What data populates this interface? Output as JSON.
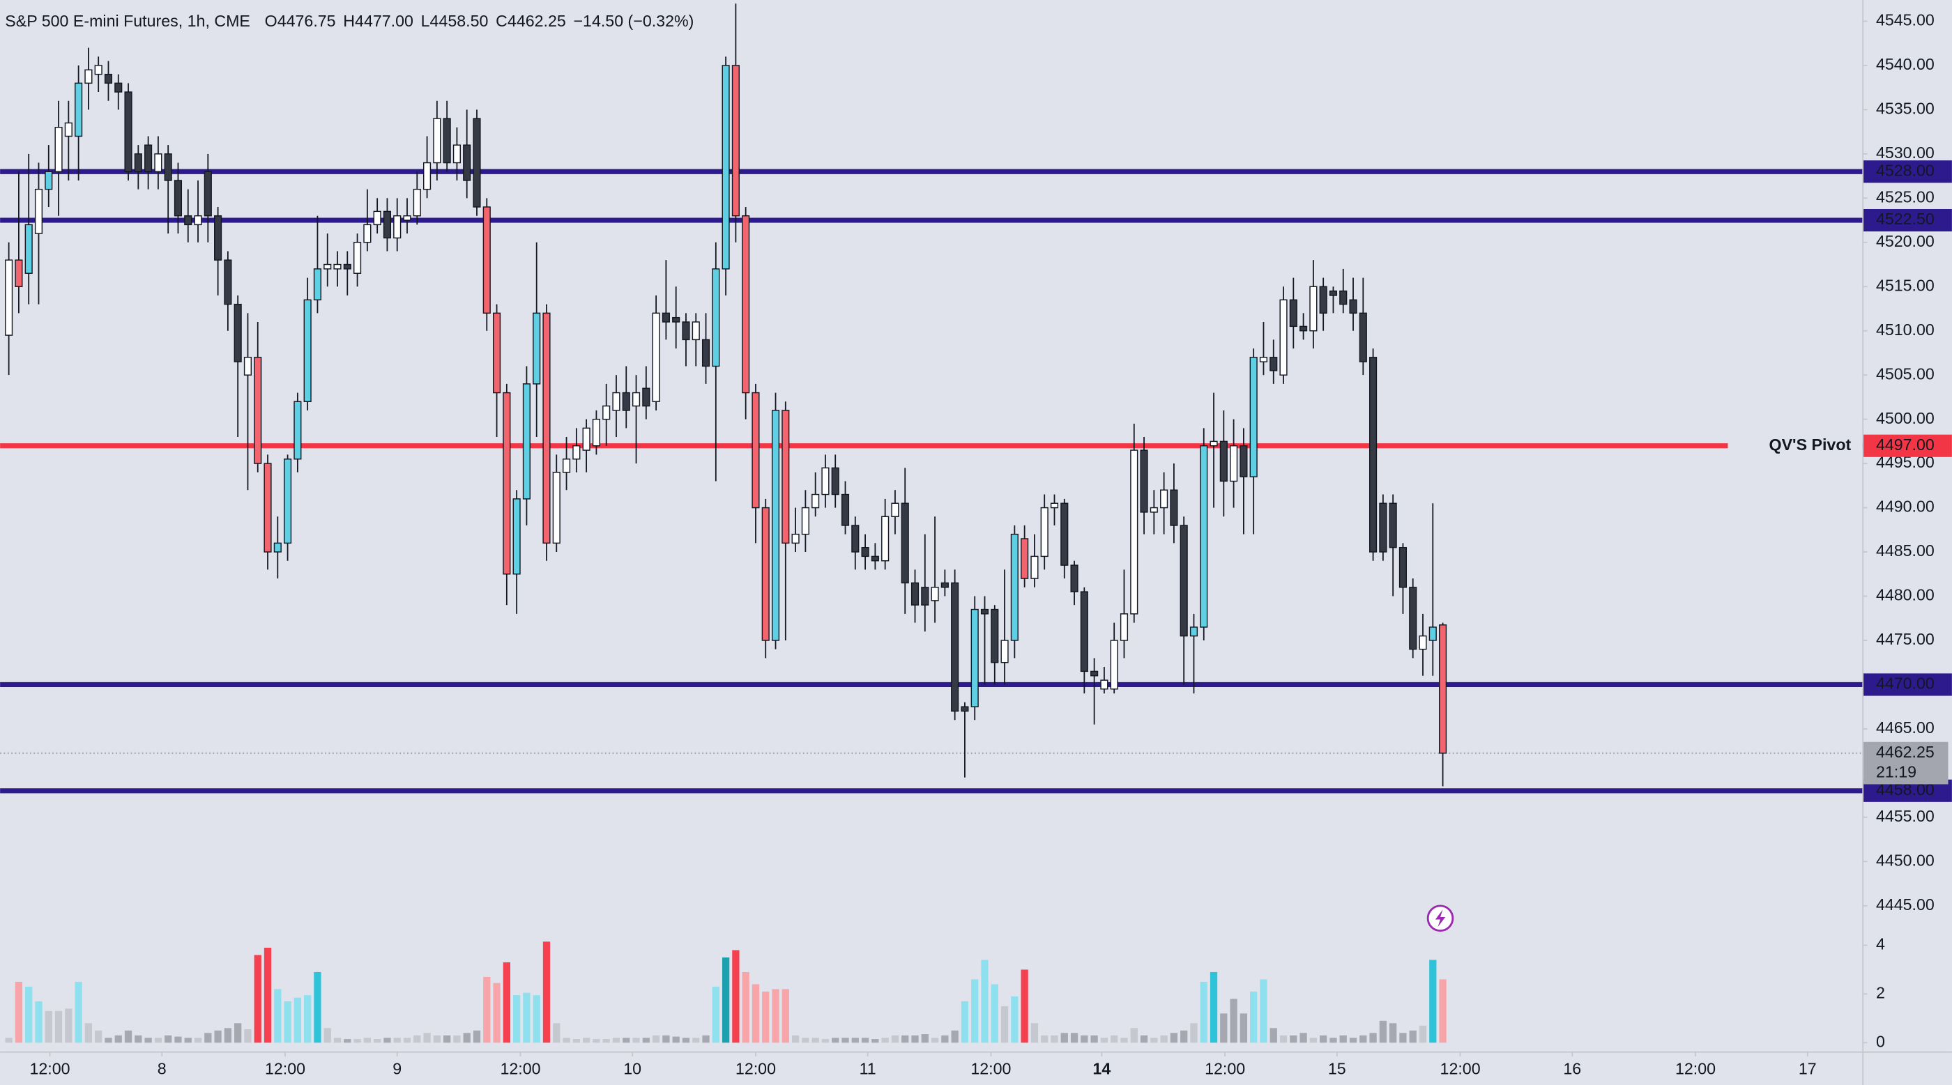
{
  "chart_data": {
    "type": "candlestick",
    "title": "S&P 500 E-mini Futures, 1h, CME",
    "header": [
      {
        "key": "O",
        "text": "4476.75"
      },
      {
        "key": "H",
        "text": "4477.00"
      },
      {
        "key": "L",
        "text": "4458.50"
      },
      {
        "key": "C",
        "text": "4462.25"
      }
    ],
    "change": "−14.50 (−0.32%)",
    "open": [
      4509.5,
      4518,
      4516.5,
      4521,
      4526,
      4528,
      4532,
      4532,
      4538,
      4539,
      4539,
      4538,
      4537,
      4530,
      4531,
      4528,
      4530,
      4527,
      4523,
      4522,
      4528,
      4523,
      4518,
      4513,
      4505,
      4507,
      4495,
      4485,
      4486,
      4495.5,
      4502,
      4513.5,
      4517,
      4517,
      4517.5,
      4516.5,
      4520,
      4522,
      4523.5,
      4520.5,
      4522.5,
      4523,
      4526,
      4529,
      4534,
      4529,
      4531,
      4534,
      4524,
      4512,
      4503,
      4482.5,
      4491,
      4504,
      4512,
      4486,
      4494,
      4495.5,
      4496.5,
      4497,
      4500,
      4501,
      4503,
      4501.5,
      4503.5,
      4502,
      4512,
      4511.5,
      4511,
      4509,
      4509,
      4506,
      4517,
      4540,
      4523,
      4503,
      4490,
      4475,
      4501,
      4486,
      4487,
      4490,
      4491.5,
      4494.5,
      4491.5,
      4488,
      4485.5,
      4484.5,
      4484,
      4489,
      4490.5,
      4481.5,
      4481,
      4479.5,
      4481.5,
      4481.5,
      4467.5,
      4467.5,
      4478.5,
      4478.5,
      4472.5,
      4475,
      4486.5,
      4482,
      4484.5,
      4490,
      4490.5,
      4483.5,
      4480.5,
      4471.5,
      4469.5,
      4469.5,
      4475,
      4478,
      4496.5,
      4489.5,
      4490,
      4492,
      4488,
      4475.5,
      4476.5,
      4497,
      4497.5,
      4493,
      4497,
      4493.5,
      4506.5,
      4507,
      4505,
      4513.5,
      4510.5,
      4510,
      4515,
      4514.5,
      4514.5,
      4513.5,
      4512,
      4507,
      4490.5,
      4490.5,
      4485.5,
      4481,
      4474,
      4475,
      4476.75
    ],
    "high": [
      4520,
      4528,
      4530,
      4529,
      4531,
      4536,
      4536,
      4540,
      4542,
      4541,
      4540.5,
      4539,
      4538,
      4531,
      4532,
      4532,
      4531,
      4529,
      4526,
      4527,
      4530,
      4524,
      4519,
      4514,
      4512,
      4511,
      4496,
      4489,
      4496,
      4503,
      4516,
      4523,
      4521,
      4519,
      4519,
      4521,
      4526,
      4525,
      4525,
      4525,
      4525,
      4528,
      4532,
      4536,
      4536,
      4533,
      4535,
      4535,
      4525,
      4513,
      4504,
      4492,
      4506,
      4520,
      4513,
      4496,
      4498,
      4499,
      4500,
      4501,
      4504,
      4505,
      4506,
      4505,
      4506,
      4514,
      4518,
      4515,
      4512,
      4512,
      4512,
      4520,
      4541,
      4547,
      4524,
      4504,
      4491,
      4503,
      4502,
      4490,
      4492,
      4494,
      4496,
      4496,
      4493,
      4489,
      4487,
      4486,
      4491,
      4492,
      4494.5,
      4483,
      4487,
      4489,
      4483,
      4483,
      4468,
      4480,
      4480,
      4479,
      4483,
      4488,
      4488,
      4487,
      4491.5,
      4491.5,
      4491,
      4484,
      4481,
      4473,
      4472,
      4477,
      4483,
      4499.5,
      4498,
      4492,
      4494,
      4495,
      4489,
      4478,
      4499,
      4503,
      4501,
      4500,
      4499,
      4508,
      4511,
      4509,
      4515,
      4516,
      4512,
      4518,
      4516,
      4515,
      4517,
      4516,
      4516,
      4508,
      4491.5,
      4491.5,
      4486,
      4482,
      4478,
      4490.5,
      4477
    ],
    "low": [
      4505,
      4512,
      4513,
      4513,
      4524,
      4523,
      4527,
      4527,
      4535,
      4537,
      4536,
      4535,
      4527,
      4526,
      4526,
      4526,
      4521,
      4521,
      4520,
      4520,
      4520,
      4514,
      4510,
      4498,
      4492,
      4494,
      4483,
      4482,
      4484,
      4494,
      4501,
      4512,
      4515,
      4515,
      4514,
      4515,
      4519,
      4521,
      4519,
      4519,
      4521,
      4522,
      4525,
      4527,
      4528,
      4527,
      4525,
      4523,
      4510,
      4498,
      4479,
      4478,
      4488,
      4498,
      4484,
      4485,
      4492,
      4494,
      4494,
      4496,
      4497,
      4498,
      4499,
      4495,
      4500,
      4501,
      4509,
      4508,
      4506,
      4506,
      4504,
      4493,
      4514,
      4520,
      4500,
      4486,
      4473,
      4474,
      4475,
      4485,
      4485,
      4489,
      4490,
      4490,
      4487,
      4483,
      4483,
      4483,
      4483,
      4487,
      4478,
      4477,
      4476,
      4477,
      4480,
      4466,
      4459.5,
      4466,
      4470,
      4470,
      4470,
      4473,
      4481,
      4481,
      4483,
      4488,
      4482,
      4479,
      4469,
      4465.5,
      4469,
      4469,
      4473,
      4477,
      4487,
      4487,
      4487,
      4486,
      4470,
      4469,
      4475,
      4490,
      4489,
      4490,
      4487,
      4487,
      4505,
      4504,
      4504,
      4508,
      4509,
      4508,
      4510,
      4512,
      4512,
      4510,
      4505,
      4484,
      4484,
      4480,
      4478,
      4473,
      4471,
      4471,
      4458.5
    ],
    "close": [
      4518,
      4515,
      4522,
      4526,
      4528,
      4533,
      4533.5,
      4538,
      4539.5,
      4540,
      4538,
      4537,
      4528,
      4528,
      4528,
      4530,
      4527,
      4523,
      4522,
      4523,
      4523,
      4518,
      4513,
      4506.5,
      4507,
      4495,
      4485,
      4486,
      4495.5,
      4502,
      4513.5,
      4517,
      4517.5,
      4517.5,
      4517,
      4520,
      4522,
      4523.5,
      4520.5,
      4523,
      4523,
      4526,
      4529,
      4534,
      4529,
      4531,
      4527,
      4524,
      4512,
      4503,
      4482.5,
      4491,
      4504,
      4512,
      4486,
      4494,
      4495.5,
      4497,
      4499,
      4500,
      4501.5,
      4503,
      4501,
      4503,
      4501.5,
      4512,
      4511,
      4511,
      4509,
      4511,
      4506,
      4517,
      4540,
      4523,
      4503,
      4490,
      4475,
      4501,
      4486,
      4487,
      4490,
      4491.5,
      4494.5,
      4491.5,
      4488,
      4485,
      4484.5,
      4484,
      4489,
      4490.5,
      4481.5,
      4479,
      4479,
      4481,
      4481,
      4467,
      4467,
      4478.5,
      4478,
      4472.5,
      4475,
      4487,
      4482,
      4484.5,
      4490,
      4490.5,
      4483.5,
      4480.5,
      4471.5,
      4471,
      4470.5,
      4475,
      4478,
      4496.5,
      4489.5,
      4490,
      4492,
      4488,
      4475.5,
      4476.5,
      4497,
      4497.5,
      4493,
      4497,
      4493.5,
      4507,
      4507,
      4505.5,
      4513.5,
      4510.5,
      4510,
      4515,
      4512,
      4514,
      4513,
      4512,
      4506.5,
      4485,
      4485,
      4485.5,
      4481,
      4474,
      4475.5,
      4476.5,
      4462.25
    ],
    "colors": [
      "#ffffff",
      "#f2656e",
      "#5fd0e4",
      "#ffffff",
      "#5fd0e4",
      "#ffffff",
      "#ffffff",
      "#5fd0e4",
      "#ffffff",
      "#ffffff",
      "#363a45",
      "#363a45",
      "#363a45",
      "#363a45",
      "#363a45",
      "#ffffff",
      "#363a45",
      "#363a45",
      "#363a45",
      "#ffffff",
      "#363a45",
      "#363a45",
      "#363a45",
      "#363a45",
      "#ffffff",
      "#f2656e",
      "#f2656e",
      "#5fd0e4",
      "#5fd0e4",
      "#5fd0e4",
      "#5fd0e4",
      "#5fd0e4",
      "#ffffff",
      "#ffffff",
      "#363a45",
      "#ffffff",
      "#ffffff",
      "#ffffff",
      "#363a45",
      "#ffffff",
      "#ffffff",
      "#ffffff",
      "#ffffff",
      "#ffffff",
      "#363a45",
      "#ffffff",
      "#363a45",
      "#363a45",
      "#f2656e",
      "#f2656e",
      "#f2656e",
      "#5fd0e4",
      "#5fd0e4",
      "#5fd0e4",
      "#f2656e",
      "#ffffff",
      "#ffffff",
      "#ffffff",
      "#ffffff",
      "#ffffff",
      "#ffffff",
      "#ffffff",
      "#363a45",
      "#ffffff",
      "#363a45",
      "#ffffff",
      "#363a45",
      "#363a45",
      "#363a45",
      "#ffffff",
      "#363a45",
      "#5fd0e4",
      "#5fd0e4",
      "#f2656e",
      "#f2656e",
      "#f2656e",
      "#f2656e",
      "#5fd0e4",
      "#f2656e",
      "#ffffff",
      "#ffffff",
      "#ffffff",
      "#ffffff",
      "#363a45",
      "#363a45",
      "#363a45",
      "#363a45",
      "#363a45",
      "#ffffff",
      "#ffffff",
      "#363a45",
      "#363a45",
      "#363a45",
      "#ffffff",
      "#363a45",
      "#363a45",
      "#363a45",
      "#5fd0e4",
      "#363a45",
      "#363a45",
      "#ffffff",
      "#5fd0e4",
      "#f2656e",
      "#ffffff",
      "#ffffff",
      "#ffffff",
      "#363a45",
      "#363a45",
      "#363a45",
      "#363a45",
      "#ffffff",
      "#ffffff",
      "#ffffff",
      "#ffffff",
      "#363a45",
      "#ffffff",
      "#ffffff",
      "#363a45",
      "#363a45",
      "#5fd0e4",
      "#5fd0e4",
      "#ffffff",
      "#363a45",
      "#ffffff",
      "#363a45",
      "#5fd0e4",
      "#ffffff",
      "#363a45",
      "#ffffff",
      "#363a45",
      "#363a45",
      "#ffffff",
      "#363a45",
      "#363a45",
      "#363a45",
      "#363a45",
      "#363a45",
      "#363a45",
      "#363a45",
      "#363a45",
      "#363a45",
      "#363a45",
      "#ffffff",
      "#5fd0e4",
      "#f2656e"
    ],
    "volume": {
      "values": [
        0.2,
        2.5,
        2.3,
        1.7,
        1.3,
        1.3,
        1.4,
        2.5,
        0.8,
        0.5,
        0.2,
        0.3,
        0.5,
        0.3,
        0.2,
        0.2,
        0.3,
        0.25,
        0.2,
        0.2,
        0.4,
        0.5,
        0.6,
        0.8,
        0.55,
        3.6,
        3.9,
        2.2,
        1.7,
        1.85,
        1.95,
        2.9,
        0.6,
        0.2,
        0.15,
        0.15,
        0.2,
        0.15,
        0.2,
        0.2,
        0.2,
        0.3,
        0.4,
        0.3,
        0.3,
        0.3,
        0.4,
        0.5,
        2.7,
        2.45,
        3.3,
        1.95,
        2.05,
        1.95,
        4.15,
        0.8,
        0.2,
        0.15,
        0.2,
        0.15,
        0.15,
        0.2,
        0.2,
        0.2,
        0.2,
        0.3,
        0.3,
        0.25,
        0.2,
        0.2,
        0.3,
        2.3,
        3.5,
        3.8,
        2.9,
        2.4,
        2.1,
        2.2,
        2.2,
        0.3,
        0.2,
        0.2,
        0.15,
        0.2,
        0.2,
        0.2,
        0.2,
        0.15,
        0.2,
        0.3,
        0.3,
        0.3,
        0.35,
        0.2,
        0.3,
        0.5,
        1.7,
        2.6,
        3.4,
        2.4,
        1.5,
        1.9,
        3.0,
        0.8,
        0.3,
        0.3,
        0.4,
        0.4,
        0.3,
        0.3,
        0.2,
        0.3,
        0.2,
        0.6,
        0.3,
        0.2,
        0.3,
        0.4,
        0.5,
        0.8,
        2.5,
        2.9,
        1.2,
        1.8,
        1.2,
        2.1,
        2.6,
        0.6,
        0.3,
        0.3,
        0.4,
        0.2,
        0.3,
        0.2,
        0.3,
        0.2,
        0.3,
        0.4,
        0.9,
        0.8,
        0.4,
        0.5,
        0.7,
        3.4,
        2.6
      ],
      "colors": [
        "#c5c8cf",
        "#f8a5a9",
        "#8ee0ee",
        "#8ee0ee",
        "#c5c8cf",
        "#c5c8cf",
        "#c5c8cf",
        "#8ee0ee",
        "#c5c8cf",
        "#c5c8cf",
        "#a5a8b0",
        "#a5a8b0",
        "#a5a8b0",
        "#a5a8b0",
        "#a5a8b0",
        "#c5c8cf",
        "#a5a8b0",
        "#a5a8b0",
        "#a5a8b0",
        "#c5c8cf",
        "#a5a8b0",
        "#a5a8b0",
        "#a5a8b0",
        "#a5a8b0",
        "#c5c8cf",
        "#f4404f",
        "#f4404f",
        "#8ee0ee",
        "#8ee0ee",
        "#8ee0ee",
        "#8ee0ee",
        "#2fc3da",
        "#c5c8cf",
        "#c5c8cf",
        "#a5a8b0",
        "#c5c8cf",
        "#c5c8cf",
        "#c5c8cf",
        "#a5a8b0",
        "#c5c8cf",
        "#c5c8cf",
        "#c5c8cf",
        "#c5c8cf",
        "#c5c8cf",
        "#a5a8b0",
        "#c5c8cf",
        "#a5a8b0",
        "#a5a8b0",
        "#f8a5a9",
        "#f8a5a9",
        "#f4404f",
        "#8ee0ee",
        "#8ee0ee",
        "#8ee0ee",
        "#f4404f",
        "#c5c8cf",
        "#c5c8cf",
        "#c5c8cf",
        "#c5c8cf",
        "#c5c8cf",
        "#c5c8cf",
        "#c5c8cf",
        "#a5a8b0",
        "#c5c8cf",
        "#a5a8b0",
        "#c5c8cf",
        "#a5a8b0",
        "#a5a8b0",
        "#a5a8b0",
        "#c5c8cf",
        "#a5a8b0",
        "#8ee0ee",
        "#1c9fae",
        "#f4404f",
        "#f8a5a9",
        "#f8a5a9",
        "#f8a5a9",
        "#f8a5a9",
        "#f8a5a9",
        "#c5c8cf",
        "#c5c8cf",
        "#c5c8cf",
        "#c5c8cf",
        "#a5a8b0",
        "#a5a8b0",
        "#a5a8b0",
        "#a5a8b0",
        "#a5a8b0",
        "#c5c8cf",
        "#c5c8cf",
        "#a5a8b0",
        "#a5a8b0",
        "#a5a8b0",
        "#c5c8cf",
        "#a5a8b0",
        "#a5a8b0",
        "#8ee0ee",
        "#8ee0ee",
        "#8ee0ee",
        "#8ee0ee",
        "#c5c8cf",
        "#8ee0ee",
        "#f4404f",
        "#c5c8cf",
        "#c5c8cf",
        "#c5c8cf",
        "#a5a8b0",
        "#a5a8b0",
        "#a5a8b0",
        "#a5a8b0",
        "#c5c8cf",
        "#c5c8cf",
        "#c5c8cf",
        "#c5c8cf",
        "#a5a8b0",
        "#c5c8cf",
        "#c5c8cf",
        "#a5a8b0",
        "#a5a8b0",
        "#c5c8cf",
        "#8ee0ee",
        "#2fc3da",
        "#a5a8b0",
        "#a5a8b0",
        "#a5a8b0",
        "#8ee0ee",
        "#8ee0ee",
        "#a5a8b0",
        "#c5c8cf",
        "#a5a8b0",
        "#a5a8b0",
        "#c5c8cf",
        "#a5a8b0",
        "#a5a8b0",
        "#a5a8b0",
        "#a5a8b0",
        "#a5a8b0",
        "#a5a8b0",
        "#a5a8b0",
        "#a5a8b0",
        "#a5a8b0",
        "#a5a8b0",
        "#c5c8cf",
        "#2fc3da",
        "#f8a5a9"
      ],
      "ylim": [
        0,
        4.7
      ],
      "yticks": [
        0,
        2,
        4
      ]
    },
    "xlim": [
      -0.875,
      186.125
    ],
    "xticks": [
      {
        "value": 4.125,
        "label": "12:00"
      },
      {
        "value": 15.375,
        "label": "8"
      },
      {
        "value": 27.75,
        "label": "12:00"
      },
      {
        "value": 39,
        "label": "9"
      },
      {
        "value": 51.375,
        "label": "12:00"
      },
      {
        "value": 62.625,
        "label": "10"
      },
      {
        "value": 75,
        "label": "12:00"
      },
      {
        "value": 86.25,
        "label": "11"
      },
      {
        "value": 98.625,
        "label": "12:00"
      },
      {
        "value": 109.75,
        "label": "14",
        "bold": true
      },
      {
        "value": 122.125,
        "label": "12:00"
      },
      {
        "value": 133.375,
        "label": "15"
      },
      {
        "value": 145.75,
        "label": "12:00"
      },
      {
        "value": 157,
        "label": "16"
      },
      {
        "value": 169.375,
        "label": "12:00"
      },
      {
        "value": 180.625,
        "label": "17"
      }
    ],
    "ylim": [
      4442.6,
      4547.4
    ],
    "yticks": [
      {
        "value": 4445,
        "label": "4445.00"
      },
      {
        "value": 4450,
        "label": "4450.00"
      },
      {
        "value": 4455,
        "label": "4455.00"
      },
      {
        "value": 4460,
        "label": "4460.00"
      },
      {
        "value": 4465,
        "label": "4465.00"
      },
      {
        "value": 4470,
        "label": "4470.00"
      },
      {
        "value": 4475,
        "label": "4475.00"
      },
      {
        "value": 4480,
        "label": "4480.00"
      },
      {
        "value": 4485,
        "label": "4485.00"
      },
      {
        "value": 4490,
        "label": "4490.00"
      },
      {
        "value": 4495,
        "label": "4495.00"
      },
      {
        "value": 4500,
        "label": "4500.00"
      },
      {
        "value": 4505,
        "label": "4505.00"
      },
      {
        "value": 4510,
        "label": "4510.00"
      },
      {
        "value": 4515,
        "label": "4515.00"
      },
      {
        "value": 4520,
        "label": "4520.00"
      },
      {
        "value": 4525,
        "label": "4525.00"
      },
      {
        "value": 4530,
        "label": "4530.00"
      },
      {
        "value": 4535,
        "label": "4535.00"
      },
      {
        "value": 4540,
        "label": "4540.00"
      },
      {
        "value": 4545,
        "label": "4545.00"
      }
    ],
    "levels": [
      {
        "value": 4528,
        "label": "4528.00",
        "color": "#2d1b8e"
      },
      {
        "value": 4522.5,
        "label": "4522.50",
        "color": "#2d1b8e"
      },
      {
        "value": 4497,
        "label": "4497.00",
        "color": "#f23645",
        "name": "QV'S Pivot"
      },
      {
        "value": 4470,
        "label": "4470.00",
        "color": "#2d1b8e"
      },
      {
        "value": 4458,
        "label": "4458.00",
        "color": "#2d1b8e"
      }
    ],
    "last_price": {
      "value": 4462.25,
      "label": "4462.25",
      "countdown": "21:19"
    },
    "grid": false
  }
}
